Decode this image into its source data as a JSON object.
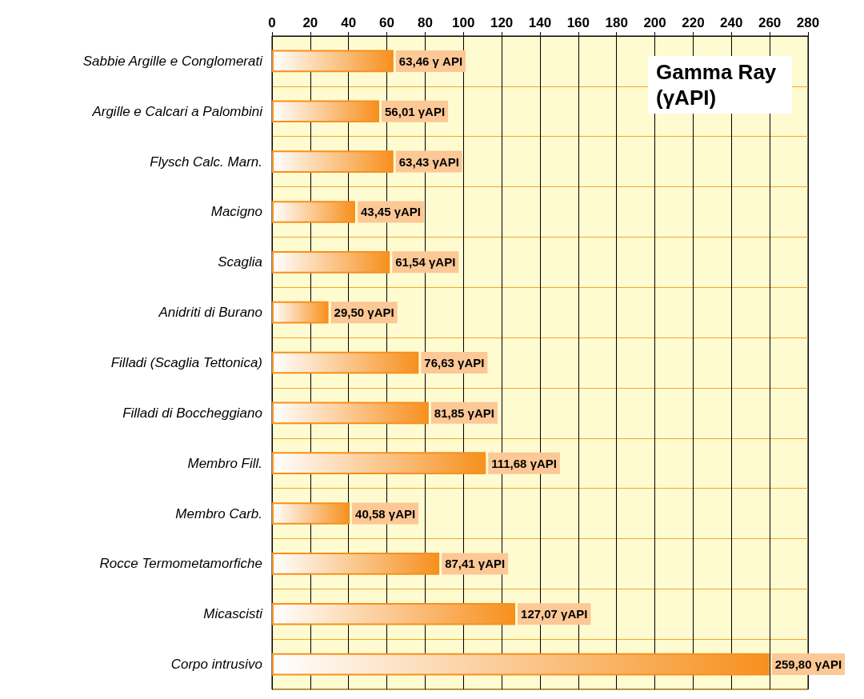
{
  "chart_data": {
    "type": "bar",
    "orientation": "horizontal",
    "title": "Gamma Ray (γAPI)",
    "categories": [
      "Sabbie Argille e Conglomerati",
      "Argille e Calcari a Palombini",
      "Flysch Calc. Marn.",
      "Macigno",
      "Scaglia",
      "Anidriti di Burano",
      "Filladi (Scaglia Tettonica)",
      "Filladi di Boccheggiano",
      "Membro Fill.",
      "Membro Carb.",
      "Rocce Termometamorfiche",
      "Micascisti",
      "Corpo intrusivo"
    ],
    "values": [
      63.46,
      56.01,
      63.43,
      43.45,
      61.54,
      29.5,
      76.63,
      81.85,
      111.68,
      40.58,
      87.41,
      127.07,
      259.8
    ],
    "value_labels": [
      "63,46 γ API",
      "56,01 γAPI",
      "63,43 γAPI",
      "43,45 γAPI",
      "61,54 γAPI",
      "29,50 γAPI",
      "76,63 γAPI",
      "81,85 γAPI",
      "111,68 γAPI",
      "40,58 γAPI",
      "87,41 γAPI",
      "127,07 γAPI",
      "259,80 γAPI"
    ],
    "color": "#f7901e",
    "xlim": [
      0,
      280
    ],
    "xticks": [
      0,
      20,
      40,
      60,
      80,
      100,
      120,
      140,
      160,
      180,
      200,
      220,
      240,
      260,
      280
    ],
    "grid": true
  }
}
